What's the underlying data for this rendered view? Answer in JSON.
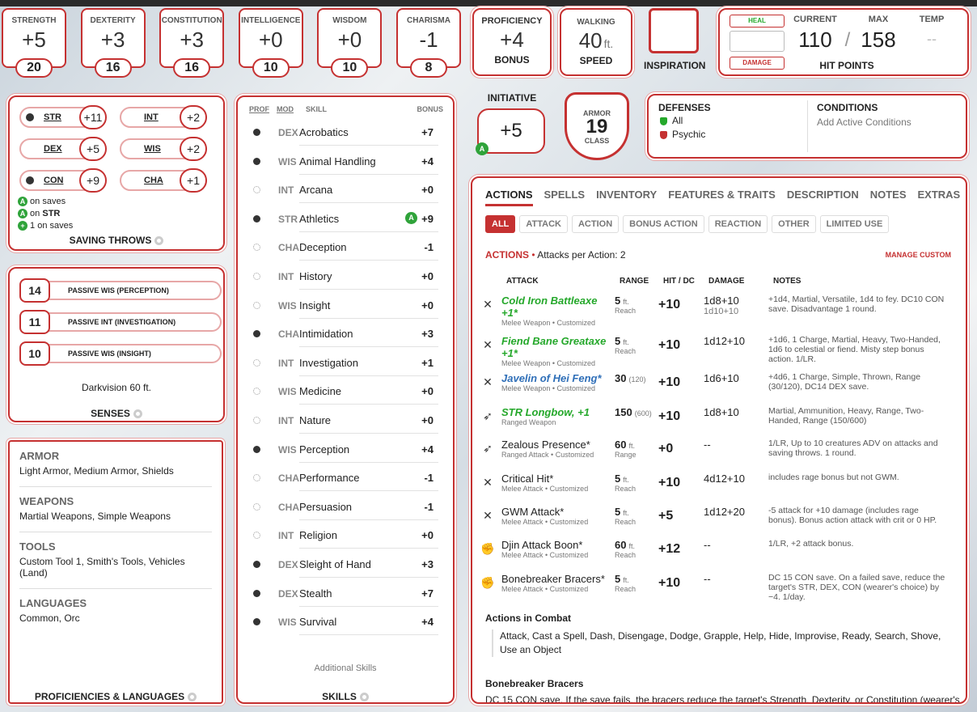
{
  "abilities": [
    {
      "label": "STRENGTH",
      "mod": "+5",
      "score": "20"
    },
    {
      "label": "DEXTERITY",
      "mod": "+3",
      "score": "16"
    },
    {
      "label": "CONSTITUTION",
      "mod": "+3",
      "score": "16"
    },
    {
      "label": "INTELLIGENCE",
      "mod": "+0",
      "score": "10"
    },
    {
      "label": "WISDOM",
      "mod": "+0",
      "score": "10"
    },
    {
      "label": "CHARISMA",
      "mod": "-1",
      "score": "8"
    }
  ],
  "proficiency": {
    "label": "PROFICIENCY",
    "value": "+4",
    "caption": "BONUS"
  },
  "speed": {
    "label": "WALKING",
    "value": "40",
    "unit": "ft.",
    "caption": "SPEED"
  },
  "inspiration": {
    "caption": "INSPIRATION"
  },
  "hp": {
    "heal": "HEAL",
    "damage": "DAMAGE",
    "current_label": "CURRENT",
    "max_label": "MAX",
    "temp_label": "TEMP",
    "current": "110",
    "sep": "/",
    "max": "158",
    "temp": "--",
    "caption": "HIT POINTS"
  },
  "initiative": {
    "label": "INITIATIVE",
    "value": "+5",
    "badge": "A"
  },
  "armor": {
    "label": "ARMOR",
    "value": "19",
    "caption": "CLASS"
  },
  "defenses": {
    "title": "DEFENSES",
    "items": [
      "All",
      "Psychic"
    ]
  },
  "conditions": {
    "title": "CONDITIONS",
    "placeholder": "Add Active Conditions"
  },
  "saves": {
    "items": [
      {
        "name": "STR",
        "bonus": "+11",
        "prof": true
      },
      {
        "name": "INT",
        "bonus": "+2",
        "prof": false
      },
      {
        "name": "DEX",
        "bonus": "+5",
        "prof": false
      },
      {
        "name": "WIS",
        "bonus": "+2",
        "prof": false
      },
      {
        "name": "CON",
        "bonus": "+9",
        "prof": true
      },
      {
        "name": "CHA",
        "bonus": "+1",
        "prof": false
      }
    ],
    "notes": [
      {
        "badge": "A",
        "pre": "",
        "strong": "",
        "text": " on saves"
      },
      {
        "badge": "A",
        "pre": " on ",
        "strong": "STR",
        "text": ""
      },
      {
        "badge": "+",
        "pre": "",
        "strong": "",
        "text": " 1 on saves"
      }
    ],
    "title": "SAVING THROWS"
  },
  "senses": {
    "items": [
      {
        "value": "14",
        "label": "PASSIVE WIS (PERCEPTION)"
      },
      {
        "value": "11",
        "label": "PASSIVE INT (INVESTIGATION)"
      },
      {
        "value": "10",
        "label": "PASSIVE WIS (INSIGHT)"
      }
    ],
    "note": "Darkvision 60 ft.",
    "title": "SENSES"
  },
  "proficiencies": {
    "groups": [
      {
        "title": "ARMOR",
        "value": "Light Armor, Medium Armor, Shields"
      },
      {
        "title": "WEAPONS",
        "value": "Martial Weapons, Simple Weapons"
      },
      {
        "title": "TOOLS",
        "value": "Custom Tool 1, Smith's Tools, Vehicles (Land)"
      },
      {
        "title": "LANGUAGES",
        "value": "Common, Orc"
      }
    ],
    "title": "PROFICIENCIES & LANGUAGES"
  },
  "skills": {
    "headers": {
      "prof": "PROF",
      "mod": "MOD",
      "skill": "SKILL",
      "bonus": "BONUS"
    },
    "items": [
      {
        "mod": "DEX",
        "name": "Acrobatics",
        "bonus": "+7",
        "prof": true
      },
      {
        "mod": "WIS",
        "name": "Animal Handling",
        "bonus": "+4",
        "prof": true
      },
      {
        "mod": "INT",
        "name": "Arcana",
        "bonus": "+0",
        "prof": false
      },
      {
        "mod": "STR",
        "name": "Athletics",
        "bonus": "+9",
        "prof": true,
        "adv": "A"
      },
      {
        "mod": "CHA",
        "name": "Deception",
        "bonus": "-1",
        "prof": false
      },
      {
        "mod": "INT",
        "name": "History",
        "bonus": "+0",
        "prof": false
      },
      {
        "mod": "WIS",
        "name": "Insight",
        "bonus": "+0",
        "prof": false
      },
      {
        "mod": "CHA",
        "name": "Intimidation",
        "bonus": "+3",
        "prof": true
      },
      {
        "mod": "INT",
        "name": "Investigation",
        "bonus": "+1",
        "prof": false
      },
      {
        "mod": "WIS",
        "name": "Medicine",
        "bonus": "+0",
        "prof": false
      },
      {
        "mod": "INT",
        "name": "Nature",
        "bonus": "+0",
        "prof": false
      },
      {
        "mod": "WIS",
        "name": "Perception",
        "bonus": "+4",
        "prof": true
      },
      {
        "mod": "CHA",
        "name": "Performance",
        "bonus": "-1",
        "prof": false
      },
      {
        "mod": "CHA",
        "name": "Persuasion",
        "bonus": "-1",
        "prof": false
      },
      {
        "mod": "INT",
        "name": "Religion",
        "bonus": "+0",
        "prof": false
      },
      {
        "mod": "DEX",
        "name": "Sleight of Hand",
        "bonus": "+3",
        "prof": true
      },
      {
        "mod": "DEX",
        "name": "Stealth",
        "bonus": "+7",
        "prof": true
      },
      {
        "mod": "WIS",
        "name": "Survival",
        "bonus": "+4",
        "prof": true
      }
    ],
    "additional": "Additional Skills",
    "title": "SKILLS"
  },
  "actions": {
    "tabs": [
      "ACTIONS",
      "SPELLS",
      "INVENTORY",
      "FEATURES & TRAITS",
      "DESCRIPTION",
      "NOTES",
      "EXTRAS"
    ],
    "filters": [
      "ALL",
      "ATTACK",
      "ACTION",
      "BONUS ACTION",
      "REACTION",
      "OTHER",
      "LIMITED USE"
    ],
    "heading": "ACTIONS",
    "per_action": "Attacks per Action: 2",
    "manage": "MANAGE CUSTOM",
    "columns": {
      "attack": "ATTACK",
      "range": "RANGE",
      "hit": "HIT / DC",
      "damage": "DAMAGE",
      "notes": "NOTES"
    },
    "attacks": [
      {
        "icon": "melee-weapon-icon",
        "name": "Cold Iron Battleaxe +1*",
        "color": "green",
        "sub": "Melee Weapon • Customized",
        "range": "5",
        "rangeunit": "ft.",
        "rangesub": "Reach",
        "hit": "+10",
        "damage": "1d8+10",
        "damage2": "1d10+10",
        "notes": "+1d4, Martial, Versatile, 1d4 to fey. DC10 CON save. Disadvantage 1 round."
      },
      {
        "icon": "melee-weapon-icon",
        "name": "Fiend Bane Greataxe +1*",
        "color": "green",
        "sub": "Melee Weapon • Customized",
        "range": "5",
        "rangeunit": "ft.",
        "rangesub": "Reach",
        "hit": "+10",
        "damage": "1d12+10",
        "damage2": "",
        "notes": "+1d6, 1 Charge, Martial, Heavy, Two-Handed, 1d6 to celestial or fiend. Misty step bonus action. 1/LR."
      },
      {
        "icon": "melee-weapon-icon",
        "name": "Javelin of Hei Feng*",
        "color": "blue",
        "sub": "Melee Weapon • Customized",
        "range": "30",
        "rangeunit": "(120)",
        "rangesub": "",
        "hit": "+10",
        "damage": "1d6+10",
        "damage2": "",
        "notes": "+4d6, 1 Charge, Simple, Thrown, Range (30/120), DC14 DEX save."
      },
      {
        "icon": "ranged-weapon-icon",
        "name": "STR Longbow, +1",
        "color": "green",
        "sub": "Ranged Weapon",
        "range": "150",
        "rangeunit": "(600)",
        "rangesub": "",
        "hit": "+10",
        "damage": "1d8+10",
        "damage2": "",
        "notes": "Martial, Ammunition, Heavy, Range, Two-Handed, Range (150/600)"
      },
      {
        "icon": "ranged-attack-icon",
        "name": "Zealous Presence*",
        "color": "plain",
        "sub": "Ranged Attack • Customized",
        "range": "60",
        "rangeunit": "ft.",
        "rangesub": "Range",
        "hit": "+0",
        "damage": "--",
        "damage2": "",
        "notes": "1/LR, Up to 10 creatures ADV on attacks and saving throws. 1 round."
      },
      {
        "icon": "melee-weapon-icon",
        "name": "Critical Hit*",
        "color": "plain",
        "sub": "Melee Attack • Customized",
        "range": "5",
        "rangeunit": "ft.",
        "rangesub": "Reach",
        "hit": "+10",
        "damage": "4d12+10",
        "damage2": "",
        "notes": "includes rage bonus but not GWM."
      },
      {
        "icon": "melee-weapon-icon",
        "name": "GWM Attack*",
        "color": "plain",
        "sub": "Melee Attack • Customized",
        "range": "5",
        "rangeunit": "ft.",
        "rangesub": "Reach",
        "hit": "+5",
        "damage": "1d12+20",
        "damage2": "",
        "notes": "-5 attack for +10 damage (includes rage bonus). Bonus action attack with crit or 0 HP."
      },
      {
        "icon": "fist-icon",
        "name": "Djin Attack Boon*",
        "color": "plain",
        "sub": "Melee Attack • Customized",
        "range": "60",
        "rangeunit": "ft.",
        "rangesub": "Reach",
        "hit": "+12",
        "damage": "--",
        "damage2": "",
        "notes": "1/LR, +2 attack bonus."
      },
      {
        "icon": "fist-icon",
        "name": "Bonebreaker Bracers*",
        "color": "plain",
        "sub": "Melee Attack • Customized",
        "range": "5",
        "rangeunit": "ft.",
        "rangesub": "Reach",
        "hit": "+10",
        "damage": "--",
        "damage2": "",
        "notes": "DC 15 CON save. On a failed save, reduce the target's STR, DEX, CON (wearer's choice) by −4. 1/day."
      }
    ],
    "combat_title": "Actions in Combat",
    "combat_text": "Attack, Cast a Spell, Dash, Disengage, Dodge, Grapple, Help, Hide, Improvise, Ready, Search, Shove, Use an Object",
    "bracers_title": "Bonebreaker Bracers",
    "bracers_text": "DC 15 CON save. If the save fails, the bracers reduce the target's Strength, Dexterity, or Constitution (wearer's"
  }
}
